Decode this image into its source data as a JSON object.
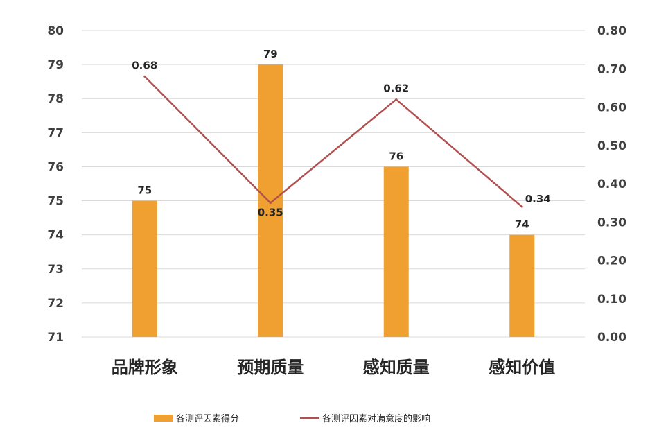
{
  "chart_data": {
    "type": "bar",
    "categories": [
      "品牌形象",
      "预期质量",
      "感知质量",
      "感知价值"
    ],
    "series": [
      {
        "name": "各测评因素得分",
        "type": "bar",
        "axis": "left",
        "values": [
          75,
          79,
          76,
          74
        ],
        "color": "#f0a030"
      },
      {
        "name": "各测评因素对满意度的影响",
        "type": "line",
        "axis": "right",
        "values": [
          0.68,
          0.35,
          0.62,
          0.34
        ],
        "color": "#b05050"
      }
    ],
    "data_labels": {
      "bar": [
        "75",
        "79",
        "76",
        "74"
      ],
      "line": [
        "0.68",
        "0.35",
        "0.62",
        "0.34"
      ]
    },
    "y_left": {
      "ylim": [
        71,
        80
      ],
      "ticks": [
        "71",
        "72",
        "73",
        "74",
        "75",
        "76",
        "77",
        "78",
        "79",
        "80"
      ]
    },
    "y_right": {
      "ylim": [
        0,
        0.8
      ],
      "ticks": [
        "0.00",
        "0.10",
        "0.20",
        "0.30",
        "0.40",
        "0.50",
        "0.60",
        "0.70",
        "0.80"
      ]
    },
    "grid": true,
    "legend_position": "bottom"
  },
  "colors": {
    "bar": "#f0a030",
    "line": "#b05050",
    "grid": "#d9d9d9"
  }
}
